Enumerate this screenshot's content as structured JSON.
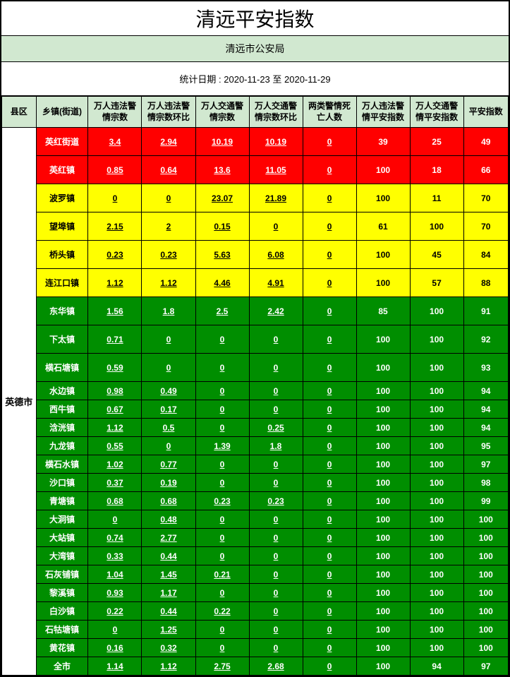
{
  "title": "清远平安指数",
  "subtitle": "清远市公安局",
  "date_range": "统计日期 : 2020-11-23 至 2020-11-29",
  "columns": [
    "县区",
    "乡镇(街道)",
    "万人违法警情宗数",
    "万人违法警情宗数环比",
    "万人交通警情宗数",
    "万人交通警情宗数环比",
    "两类警情死亡人数",
    "万人违法警情平安指数",
    "万人交通警情平安指数",
    "平安指数"
  ],
  "district": "英德市",
  "colors": {
    "header_bg": "#d1e8d0",
    "red": "#ff0000",
    "yellow": "#ffff00",
    "green": "#008e00",
    "white": "#ffffff",
    "black": "#000000"
  },
  "rows": [
    {
      "town": "英红街道",
      "v": [
        "3.4",
        "2.94",
        "10.19",
        "10.19",
        "0",
        "39",
        "25",
        "49"
      ],
      "tier": "red",
      "h": "tall"
    },
    {
      "town": "英红镇",
      "v": [
        "0.85",
        "0.64",
        "13.6",
        "11.05",
        "0",
        "100",
        "18",
        "66"
      ],
      "tier": "red",
      "h": "tall"
    },
    {
      "town": "波罗镇",
      "v": [
        "0",
        "0",
        "23.07",
        "21.89",
        "0",
        "100",
        "11",
        "70"
      ],
      "tier": "yellow",
      "h": "tall"
    },
    {
      "town": "望埠镇",
      "v": [
        "2.15",
        "2",
        "0.15",
        "0",
        "0",
        "61",
        "100",
        "70"
      ],
      "tier": "yellow",
      "h": "tall"
    },
    {
      "town": "桥头镇",
      "v": [
        "0.23",
        "0.23",
        "5.63",
        "6.08",
        "0",
        "100",
        "45",
        "84"
      ],
      "tier": "yellow",
      "h": "tall"
    },
    {
      "town": "连江口镇",
      "v": [
        "1.12",
        "1.12",
        "4.46",
        "4.91",
        "0",
        "100",
        "57",
        "88"
      ],
      "tier": "yellow",
      "h": "tall"
    },
    {
      "town": "东华镇",
      "v": [
        "1.56",
        "1.8",
        "2.5",
        "2.42",
        "0",
        "85",
        "100",
        "91"
      ],
      "tier": "green",
      "h": "tall"
    },
    {
      "town": "下太镇",
      "v": [
        "0.71",
        "0",
        "0",
        "0",
        "0",
        "100",
        "100",
        "92"
      ],
      "tier": "green",
      "h": "tall"
    },
    {
      "town": "横石塘镇",
      "v": [
        "0.59",
        "0",
        "0",
        "0",
        "0",
        "100",
        "100",
        "93"
      ],
      "tier": "green",
      "h": "tall"
    },
    {
      "town": "水边镇",
      "v": [
        "0.98",
        "0.49",
        "0",
        "0",
        "0",
        "100",
        "100",
        "94"
      ],
      "tier": "green",
      "h": "short"
    },
    {
      "town": "西牛镇",
      "v": [
        "0.67",
        "0.17",
        "0",
        "0",
        "0",
        "100",
        "100",
        "94"
      ],
      "tier": "green",
      "h": "short"
    },
    {
      "town": "浛洸镇",
      "v": [
        "1.12",
        "0.5",
        "0",
        "0.25",
        "0",
        "100",
        "100",
        "94"
      ],
      "tier": "green",
      "h": "short"
    },
    {
      "town": "九龙镇",
      "v": [
        "0.55",
        "0",
        "1.39",
        "1.8",
        "0",
        "100",
        "100",
        "95"
      ],
      "tier": "green",
      "h": "short"
    },
    {
      "town": "横石水镇",
      "v": [
        "1.02",
        "0.77",
        "0",
        "0",
        "0",
        "100",
        "100",
        "97"
      ],
      "tier": "green",
      "h": "short"
    },
    {
      "town": "沙口镇",
      "v": [
        "0.37",
        "0.19",
        "0",
        "0",
        "0",
        "100",
        "100",
        "98"
      ],
      "tier": "green",
      "h": "short"
    },
    {
      "town": "青塘镇",
      "v": [
        "0.68",
        "0.68",
        "0.23",
        "0.23",
        "0",
        "100",
        "100",
        "99"
      ],
      "tier": "green",
      "h": "short"
    },
    {
      "town": "大洞镇",
      "v": [
        "0",
        "0.48",
        "0",
        "0",
        "0",
        "100",
        "100",
        "100"
      ],
      "tier": "green",
      "h": "short"
    },
    {
      "town": "大站镇",
      "v": [
        "0.74",
        "2.77",
        "0",
        "0",
        "0",
        "100",
        "100",
        "100"
      ],
      "tier": "green",
      "h": "short"
    },
    {
      "town": "大湾镇",
      "v": [
        "0.33",
        "0.44",
        "0",
        "0",
        "0",
        "100",
        "100",
        "100"
      ],
      "tier": "green",
      "h": "short"
    },
    {
      "town": "石灰铺镇",
      "v": [
        "1.04",
        "1.45",
        "0.21",
        "0",
        "0",
        "100",
        "100",
        "100"
      ],
      "tier": "green",
      "h": "short"
    },
    {
      "town": "黎溪镇",
      "v": [
        "0.93",
        "1.17",
        "0",
        "0",
        "0",
        "100",
        "100",
        "100"
      ],
      "tier": "green",
      "h": "short"
    },
    {
      "town": "白沙镇",
      "v": [
        "0.22",
        "0.44",
        "0.22",
        "0",
        "0",
        "100",
        "100",
        "100"
      ],
      "tier": "green",
      "h": "short"
    },
    {
      "town": "石牯塘镇",
      "v": [
        "0",
        "1.25",
        "0",
        "0",
        "0",
        "100",
        "100",
        "100"
      ],
      "tier": "green",
      "h": "short"
    },
    {
      "town": "黄花镇",
      "v": [
        "0.16",
        "0.32",
        "0",
        "0",
        "0",
        "100",
        "100",
        "100"
      ],
      "tier": "green",
      "h": "short"
    },
    {
      "town": "全市",
      "v": [
        "1.14",
        "1.12",
        "2.75",
        "2.68",
        "0",
        "100",
        "94",
        "97"
      ],
      "tier": "green",
      "h": "short"
    }
  ]
}
